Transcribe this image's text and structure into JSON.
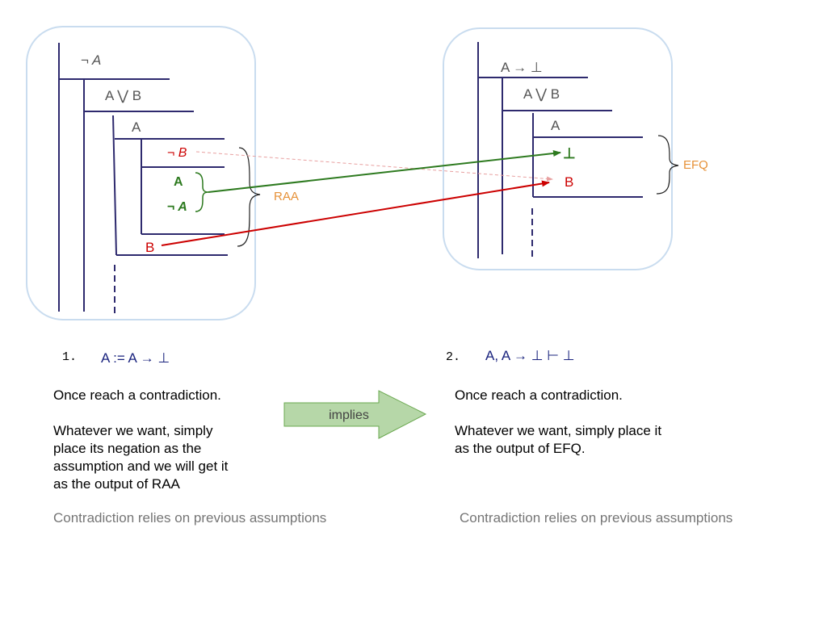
{
  "left_panel": {
    "assume_not_a": "¬ A",
    "a_or_b": "A ⋁ B",
    "case_a": "A",
    "assume_not_b": "¬ B",
    "derived_a": "A",
    "derived_not_a": "¬ A",
    "raa_label": "RAA",
    "conclusion_b": "B"
  },
  "right_panel": {
    "assume_a_implies_bottom": "A → ⊥",
    "a_or_b": "A ⋁ B",
    "case_a": "A",
    "bottom": "⊥",
    "conclusion_b": "B",
    "efq_label": "EFQ"
  },
  "left_caption": {
    "number": "1.",
    "formula": "A := A → ⊥",
    "body": "Once reach a contradiction.\n\nWhatever we want, simply\nplace its negation as the\nassumption and we will get it\nas the output of RAA",
    "note": "Contradiction relies on previous assumptions"
  },
  "right_caption": {
    "number": "2.",
    "formula": "A, A → ⊥  ⊢ ⊥",
    "body": "Once reach a contradiction.\n\nWhatever we want, simply place it\nas the output of EFQ.",
    "note": "Contradiction relies on previous assumptions"
  },
  "implies_arrow": {
    "label": "implies"
  },
  "colors": {
    "box_border": "#c9dcef",
    "proof_line": "#2e2a6e",
    "red": "#cc0000",
    "green": "#2d7a1f",
    "orange": "#e69138",
    "gray_text": "#555555",
    "arrow_fill": "#b6d7a8"
  }
}
